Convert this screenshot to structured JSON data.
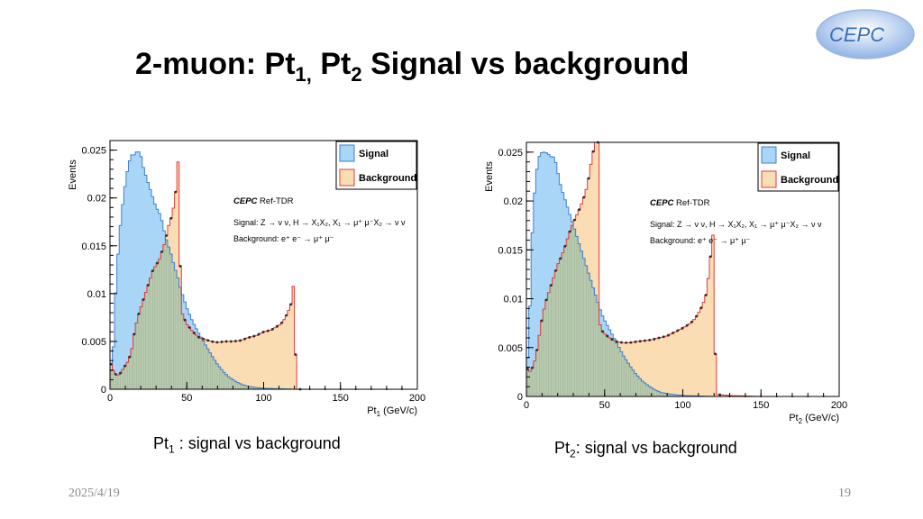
{
  "slide": {
    "title_parts": {
      "a": "2-muon: Pt",
      "a_sub": "1",
      "b": ",",
      "c": " Pt",
      "c_sub": "2",
      "d": " Signal vs background"
    },
    "logo_text": "CEPC",
    "captions": [
      {
        "main": "Pt",
        "sub": "1",
        "rest": " : signal vs background"
      },
      {
        "main": "Pt",
        "sub": "2",
        "rest": ": signal vs background"
      }
    ],
    "date": "2025/4/19",
    "page_number": "19"
  },
  "colors": {
    "signal_fill": "#a9d6f7",
    "signal_line": "#3f7fd0",
    "background_fill": "#fbddb3",
    "background_line": "#e03a3a",
    "overlap_fill": "#b8cbb0",
    "points": "#2a2a2a",
    "logo": "#3a6fb3"
  },
  "chart_data": [
    {
      "type": "histogram",
      "ylabel": "Events",
      "xlabel_main": "Pt",
      "xlabel_sub": "1",
      "xlabel_unit": " (GeV/c)",
      "xlim": [
        0,
        200
      ],
      "ylim": [
        0,
        0.026
      ],
      "xticks": [
        0,
        50,
        100,
        150,
        200
      ],
      "yticks": [
        0,
        0.005,
        0.01,
        0.015,
        0.02,
        0.025
      ],
      "ytick_labels": [
        "0",
        "0.005",
        "0.01",
        "0.015",
        "0.02",
        "0.025"
      ],
      "legend": [
        {
          "name": "Signal",
          "color": "signal"
        },
        {
          "name": "Background",
          "color": "background"
        }
      ],
      "annotations": {
        "brand": "CEPC",
        "brand_rest": " Ref-TDR",
        "signal": "Signal: Z → ν ν, H → X₁X₂, X₁ → μ⁺ μ⁻X₂ → ν ν",
        "background": "Background:  e⁺ e⁻ → μ⁺ μ⁻"
      },
      "signal": {
        "x": [
          0,
          2,
          4,
          6,
          8,
          10,
          12,
          14,
          16,
          18,
          20,
          22,
          24,
          26,
          28,
          30,
          32,
          34,
          36,
          38,
          40,
          42,
          44,
          46,
          48,
          50,
          54,
          58,
          62,
          66,
          70,
          74,
          78,
          82,
          86,
          90,
          94,
          100,
          110,
          120,
          140,
          200
        ],
        "y": [
          0.001,
          0.0035,
          0.011,
          0.016,
          0.019,
          0.0215,
          0.0235,
          0.0245,
          0.0245,
          0.025,
          0.0245,
          0.023,
          0.022,
          0.021,
          0.02,
          0.019,
          0.0185,
          0.0175,
          0.016,
          0.015,
          0.014,
          0.0128,
          0.0118,
          0.0105,
          0.0095,
          0.0085,
          0.007,
          0.0058,
          0.0047,
          0.0036,
          0.0026,
          0.0018,
          0.0012,
          0.0008,
          0.0005,
          0.0003,
          0.0002,
          0.0001,
          5e-05,
          0,
          0,
          0
        ]
      },
      "background": {
        "x": [
          0,
          2,
          4,
          6,
          8,
          10,
          12,
          14,
          16,
          18,
          20,
          22,
          24,
          26,
          28,
          30,
          32,
          34,
          36,
          38,
          40,
          42,
          43,
          44,
          45,
          46,
          48,
          50,
          54,
          58,
          62,
          66,
          70,
          75,
          80,
          85,
          90,
          95,
          100,
          105,
          108,
          111,
          113,
          115,
          117,
          119,
          120,
          121,
          122,
          130,
          150,
          200
        ],
        "y": [
          0.003,
          0.002,
          0.0015,
          0.0015,
          0.002,
          0.0025,
          0.003,
          0.004,
          0.006,
          0.0075,
          0.0085,
          0.0095,
          0.0105,
          0.0115,
          0.0125,
          0.013,
          0.0135,
          0.0145,
          0.0155,
          0.017,
          0.018,
          0.0195,
          0.021,
          0.023,
          0.026,
          0.0085,
          0.0075,
          0.0068,
          0.006,
          0.0054,
          0.0052,
          0.005,
          0.0049,
          0.005,
          0.005,
          0.0051,
          0.0054,
          0.0056,
          0.006,
          0.0062,
          0.0065,
          0.0068,
          0.0072,
          0.0078,
          0.0085,
          0.0095,
          0.0145,
          0,
          0,
          0,
          0,
          0
        ]
      }
    },
    {
      "type": "histogram",
      "ylabel": "Events",
      "xlabel_main": "Pt",
      "xlabel_sub": "2",
      "xlabel_unit": " (GeV/c)",
      "xlim": [
        0,
        200
      ],
      "ylim": [
        0,
        0.026
      ],
      "xticks": [
        0,
        50,
        100,
        150,
        200
      ],
      "yticks": [
        0,
        0.005,
        0.01,
        0.015,
        0.02,
        0.025
      ],
      "ytick_labels": [
        "0",
        "0.005",
        "0.01",
        "0.015",
        "0.02",
        "0.025"
      ],
      "legend": [
        {
          "name": "Signal",
          "color": "signal"
        },
        {
          "name": "Background",
          "color": "background"
        }
      ],
      "annotations": {
        "brand": "CEPC",
        "brand_rest": " Ref-TDR",
        "signal": "Signal: Z → ν ν, H → X₁X₂, X₁ → μ⁺ μ⁻X₂ → ν ν",
        "background": "Background:  e⁺ e⁻ → μ⁺ μ⁻"
      },
      "signal": {
        "x": [
          0,
          2,
          4,
          6,
          8,
          10,
          12,
          14,
          16,
          18,
          20,
          22,
          24,
          26,
          28,
          30,
          32,
          34,
          36,
          38,
          40,
          42,
          44,
          46,
          48,
          50,
          54,
          58,
          62,
          66,
          70,
          74,
          78,
          82,
          86,
          90,
          94,
          100,
          110,
          120,
          140,
          200
        ],
        "y": [
          0.0015,
          0.008,
          0.018,
          0.0225,
          0.0245,
          0.025,
          0.025,
          0.0248,
          0.0245,
          0.0245,
          0.023,
          0.0215,
          0.0205,
          0.0195,
          0.0185,
          0.0175,
          0.0165,
          0.0155,
          0.0145,
          0.0135,
          0.0125,
          0.0115,
          0.0105,
          0.0095,
          0.0085,
          0.0078,
          0.0066,
          0.0054,
          0.0042,
          0.0032,
          0.0023,
          0.0016,
          0.0011,
          0.0007,
          0.0004,
          0.0003,
          0.0002,
          0.0001,
          5e-05,
          0,
          0,
          0
        ]
      },
      "background": {
        "x": [
          0,
          2,
          4,
          6,
          8,
          10,
          12,
          14,
          16,
          18,
          20,
          22,
          24,
          26,
          28,
          30,
          32,
          34,
          36,
          38,
          40,
          42,
          44,
          45,
          46,
          47,
          48,
          50,
          54,
          58,
          62,
          66,
          70,
          75,
          80,
          85,
          90,
          95,
          100,
          105,
          108,
          111,
          113,
          115,
          117,
          119,
          120,
          121,
          122,
          130,
          150,
          200
        ],
        "y": [
          0.003,
          0.0025,
          0.003,
          0.004,
          0.006,
          0.008,
          0.0095,
          0.0105,
          0.0115,
          0.0125,
          0.0135,
          0.0142,
          0.015,
          0.016,
          0.017,
          0.0178,
          0.0185,
          0.0192,
          0.02,
          0.021,
          0.0225,
          0.0245,
          0.026,
          0.026,
          0.026,
          0.0075,
          0.0068,
          0.0064,
          0.0059,
          0.0056,
          0.0055,
          0.0055,
          0.0056,
          0.0057,
          0.0058,
          0.006,
          0.0062,
          0.0066,
          0.007,
          0.0075,
          0.008,
          0.0088,
          0.0095,
          0.0105,
          0.013,
          0.0165,
          0.0165,
          0.0003,
          0.0002,
          0.0001,
          0,
          0
        ]
      }
    }
  ]
}
